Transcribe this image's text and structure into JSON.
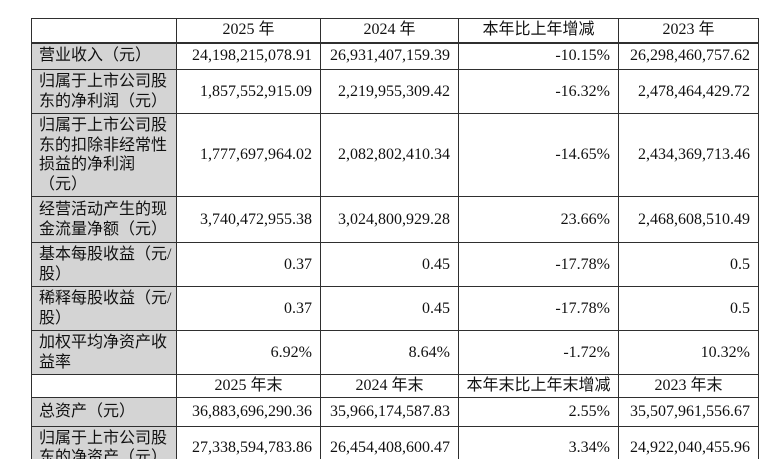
{
  "page": {
    "background": "#ffffff",
    "text_color": "#111111"
  },
  "table": {
    "label_bg": "#d4d4d4",
    "border_color": "#2f2f2f",
    "sections": [
      {
        "header": {
          "corner": "",
          "cols": [
            "2025 年",
            "2024 年",
            "本年比上年增减",
            "2023 年"
          ]
        },
        "rows": [
          {
            "label": "营业收入（元）",
            "values": [
              "24,198,215,078.91",
              "26,931,407,159.39",
              "-10.15%",
              "26,298,460,757.62"
            ]
          },
          {
            "label": "归属于上市公司股东的净利润（元）",
            "values": [
              "1,857,552,915.09",
              "2,219,955,309.42",
              "-16.32%",
              "2,478,464,429.72"
            ]
          },
          {
            "label": "归属于上市公司股东的扣除非经常性损益的净利润（元）",
            "values": [
              "1,777,697,964.02",
              "2,082,802,410.34",
              "-14.65%",
              "2,434,369,713.46"
            ]
          },
          {
            "label": "经营活动产生的现金流量净额（元）",
            "values": [
              "3,740,472,955.38",
              "3,024,800,929.28",
              "23.66%",
              "2,468,608,510.49"
            ]
          },
          {
            "label": "基本每股收益（元/股）",
            "values": [
              "0.37",
              "0.45",
              "-17.78%",
              "0.5"
            ]
          },
          {
            "label": "稀释每股收益（元/股）",
            "values": [
              "0.37",
              "0.45",
              "-17.78%",
              "0.5"
            ]
          },
          {
            "label": "加权平均净资产收益率",
            "values": [
              "6.92%",
              "8.64%",
              "-1.72%",
              "10.32%"
            ]
          }
        ]
      },
      {
        "header": {
          "corner": "",
          "cols": [
            "2025 年末",
            "2024 年末",
            "本年末比上年末增减",
            "2023 年末"
          ]
        },
        "rows": [
          {
            "label": "总资产（元）",
            "values": [
              "36,883,696,290.36",
              "35,966,174,587.83",
              "2.55%",
              "35,507,961,556.67"
            ]
          },
          {
            "label": "归属于上市公司股东的净资产（元）",
            "values": [
              "27,338,594,783.86",
              "26,454,408,600.47",
              "3.34%",
              "24,922,040,455.96"
            ]
          }
        ]
      }
    ]
  }
}
